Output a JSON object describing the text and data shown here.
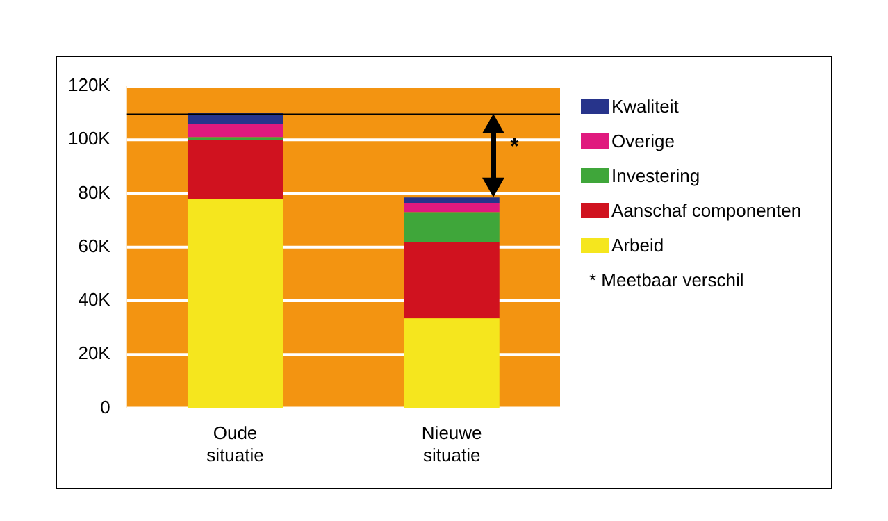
{
  "chart_data": {
    "type": "bar",
    "stacked": true,
    "categories": [
      "Oude situatie",
      "Nieuwe situatie"
    ],
    "series": [
      {
        "name": "Arbeid",
        "color": "#f5e61e",
        "values": [
          78,
          33.5
        ]
      },
      {
        "name": "Aanschaf componenten",
        "color": "#d0121f",
        "values": [
          22,
          28.5
        ]
      },
      {
        "name": "Investering",
        "color": "#3fa63a",
        "values": [
          1,
          11
        ]
      },
      {
        "name": "Overige",
        "color": "#e0197e",
        "values": [
          5,
          3.5
        ]
      },
      {
        "name": "Kwaliteit",
        "color": "#27348b",
        "values": [
          4,
          2
        ]
      }
    ],
    "ylim": [
      0,
      120
    ],
    "yticks": [
      {
        "value": 0,
        "label": "0"
      },
      {
        "value": 20,
        "label": "20K"
      },
      {
        "value": 40,
        "label": "40K"
      },
      {
        "value": 60,
        "label": "60K"
      },
      {
        "value": 80,
        "label": "80K"
      },
      {
        "value": 100,
        "label": "100K"
      },
      {
        "value": 120,
        "label": "120K"
      }
    ],
    "grid": "y",
    "legend": "right",
    "ref_lines": [
      {
        "axis": "y",
        "value": 109.5,
        "color": "#000000"
      }
    ],
    "annotations": [
      "*",
      "* Meetbaar verschil"
    ]
  }
}
